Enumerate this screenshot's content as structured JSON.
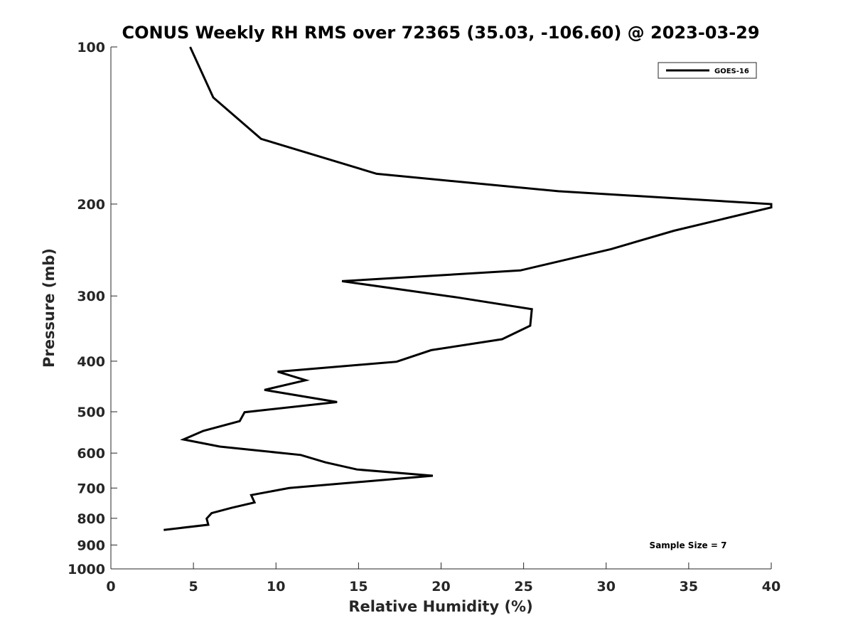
{
  "chart_data": {
    "type": "line",
    "title": "CONUS Weekly RH RMS over 72365 (35.03, -106.60) @ 2023-03-29",
    "xlabel": "Relative Humidity (%)",
    "ylabel": "Pressure (mb)",
    "xlim": [
      0,
      40
    ],
    "ylim": [
      100,
      1000
    ],
    "y_scale": "log",
    "y_reversed": true,
    "grid": false,
    "legend_position": "top-right",
    "x_ticks": [
      0,
      5,
      10,
      15,
      20,
      25,
      30,
      35,
      40
    ],
    "x_tick_labels": [
      "0",
      "5",
      "10",
      "15",
      "20",
      "25",
      "30",
      "35",
      "40"
    ],
    "y_ticks": [
      100,
      200,
      300,
      400,
      500,
      600,
      700,
      800,
      900,
      1000
    ],
    "y_tick_labels": [
      "100",
      "200",
      "300",
      "400",
      "500",
      "600",
      "700",
      "800",
      "900",
      "1000"
    ],
    "series": [
      {
        "name": "GOES-16",
        "color": "#000000",
        "points": [
          [
            4.8,
            100
          ],
          [
            6.2,
            125
          ],
          [
            9.1,
            150
          ],
          [
            16.1,
            175
          ],
          [
            27.1,
            189
          ],
          [
            40.0,
            200
          ],
          [
            40.0,
            203
          ],
          [
            34.1,
            225
          ],
          [
            30.3,
            244
          ],
          [
            24.8,
            268
          ],
          [
            14.0,
            281
          ],
          [
            21.0,
            302
          ],
          [
            25.5,
            318
          ],
          [
            25.4,
            342
          ],
          [
            23.7,
            363
          ],
          [
            19.4,
            381
          ],
          [
            17.3,
            401
          ],
          [
            10.1,
            419
          ],
          [
            11.8,
            435
          ],
          [
            9.3,
            454
          ],
          [
            13.7,
            479
          ],
          [
            8.1,
            501
          ],
          [
            7.8,
            521
          ],
          [
            5.6,
            544
          ],
          [
            4.4,
            565
          ],
          [
            6.6,
            583
          ],
          [
            11.5,
            605
          ],
          [
            13.0,
            625
          ],
          [
            14.9,
            645
          ],
          [
            19.5,
            663
          ],
          [
            10.8,
            700
          ],
          [
            8.5,
            722
          ],
          [
            8.7,
            746
          ],
          [
            7.3,
            764
          ],
          [
            6.1,
            782
          ],
          [
            5.8,
            801
          ],
          [
            5.9,
            823
          ],
          [
            3.2,
            842
          ]
        ]
      }
    ],
    "annotations": [
      {
        "text": "Sample Size = 7",
        "position": "bottom-right"
      }
    ]
  }
}
